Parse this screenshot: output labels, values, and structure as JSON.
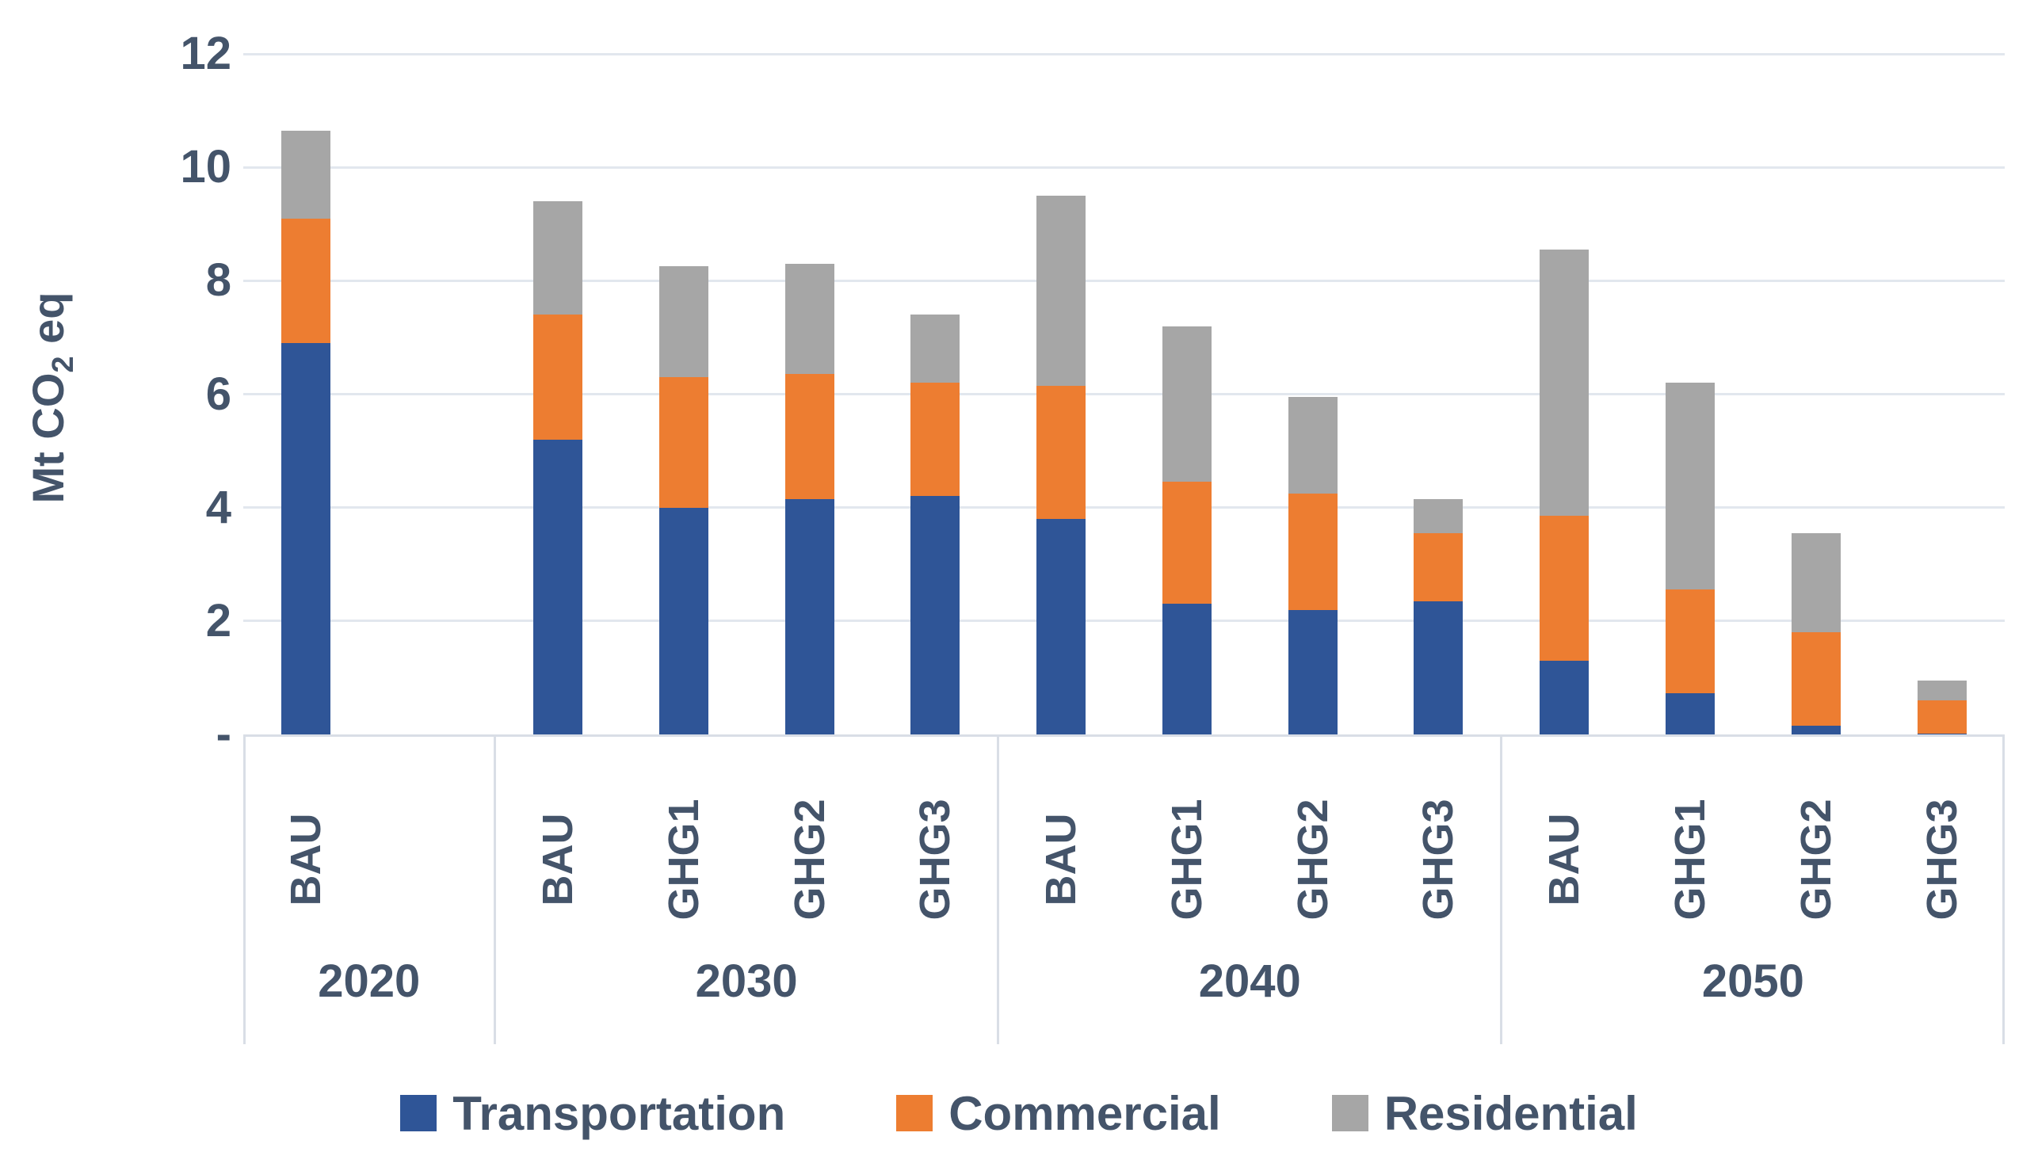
{
  "chart_data": {
    "type": "bar",
    "stacked": true,
    "title": "",
    "ylabel": {
      "pre": "Mt CO",
      "sub": "2",
      "post": " eq"
    },
    "ylabel_plain": "Mt CO2 eq",
    "y_axis": {
      "min": 0,
      "max": 12,
      "step": 2,
      "ticks": [
        {
          "value": 12,
          "label": "12"
        },
        {
          "value": 10,
          "label": "10"
        },
        {
          "value": 8,
          "label": "8"
        },
        {
          "value": 6,
          "label": "6"
        },
        {
          "value": 4,
          "label": "4"
        },
        {
          "value": 2,
          "label": "2"
        },
        {
          "value": 0,
          "label": "-"
        }
      ],
      "grid": true
    },
    "series": [
      {
        "name": "Transportation",
        "color": "#2F5597"
      },
      {
        "name": "Commercial",
        "color": "#ED7D31"
      },
      {
        "name": "Residential",
        "color": "#A6A6A6"
      }
    ],
    "legend": {
      "position": "bottom",
      "entries": [
        "Transportation",
        "Commercial",
        "Residential"
      ]
    },
    "groups": [
      {
        "year": "2020",
        "slot_count": 2,
        "bars": [
          {
            "label": "BAU",
            "values": [
              6.9,
              2.2,
              1.55
            ]
          },
          {
            "label": "",
            "values": null
          }
        ]
      },
      {
        "year": "2030",
        "slot_count": 4,
        "bars": [
          {
            "label": "BAU",
            "values": [
              5.2,
              2.2,
              2.0
            ]
          },
          {
            "label": "GHG1",
            "values": [
              4.0,
              2.3,
              1.95
            ]
          },
          {
            "label": "GHG2",
            "values": [
              4.15,
              2.2,
              1.95
            ]
          },
          {
            "label": "GHG3",
            "values": [
              4.2,
              2.0,
              1.2
            ]
          }
        ]
      },
      {
        "year": "2040",
        "slot_count": 4,
        "bars": [
          {
            "label": "BAU",
            "values": [
              3.8,
              2.35,
              3.35
            ]
          },
          {
            "label": "GHG1",
            "values": [
              2.3,
              2.15,
              2.75
            ]
          },
          {
            "label": "GHG2",
            "values": [
              2.2,
              2.05,
              1.7
            ]
          },
          {
            "label": "GHG3",
            "values": [
              2.35,
              1.2,
              0.6
            ]
          }
        ]
      },
      {
        "year": "2050",
        "slot_count": 4,
        "bars": [
          {
            "label": "BAU",
            "values": [
              1.3,
              2.55,
              4.7
            ]
          },
          {
            "label": "GHG1",
            "values": [
              0.73,
              1.82,
              3.65
            ]
          },
          {
            "label": "GHG2",
            "values": [
              0.15,
              1.65,
              1.75
            ]
          },
          {
            "label": "GHG3",
            "values": [
              0.02,
              0.58,
              0.35
            ]
          }
        ]
      }
    ],
    "colors": {
      "text": "#44546A",
      "gridline": "#E2E7EE",
      "divider": "#D9DEE6"
    }
  }
}
